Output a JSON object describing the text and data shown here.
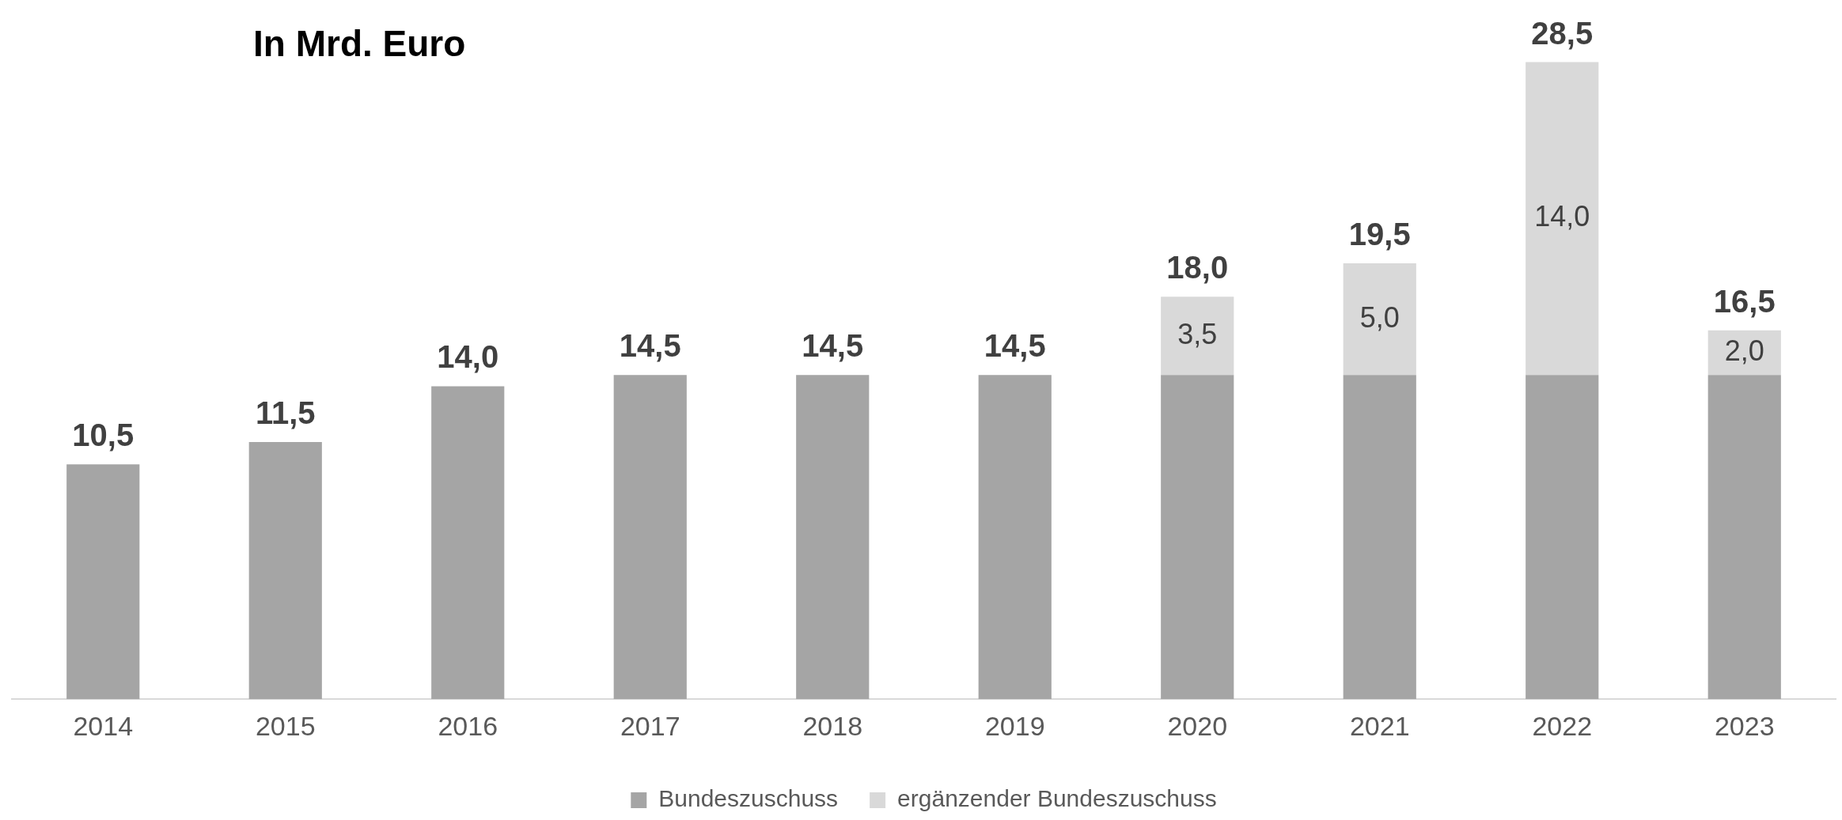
{
  "chart_data": {
    "type": "bar",
    "title": "In Mrd. Euro",
    "stacked": true,
    "legend": "bottom",
    "grid": false,
    "categories": [
      "2014",
      "2015",
      "2016",
      "2017",
      "2018",
      "2019",
      "2020",
      "2021",
      "2022",
      "2023"
    ],
    "series": [
      {
        "name": "Bundeszuschuss",
        "color": "#a5a5a5",
        "values": [
          10.5,
          11.5,
          14.0,
          14.5,
          14.5,
          14.5,
          14.5,
          14.5,
          14.5,
          14.5
        ]
      },
      {
        "name": "ergänzender Bundeszuschuss",
        "color": "#d9d9d9",
        "values": [
          null,
          null,
          null,
          null,
          null,
          null,
          3.5,
          5.0,
          14.0,
          2.0
        ],
        "value_labels": [
          null,
          null,
          null,
          null,
          null,
          null,
          "3,5",
          "5,0",
          "14,0",
          "2,0"
        ]
      }
    ],
    "totals": [
      "10,5",
      "11,5",
      "14,0",
      "14,5",
      "14,5",
      "14,5",
      "18,0",
      "19,5",
      "28,5",
      "16,5"
    ]
  }
}
